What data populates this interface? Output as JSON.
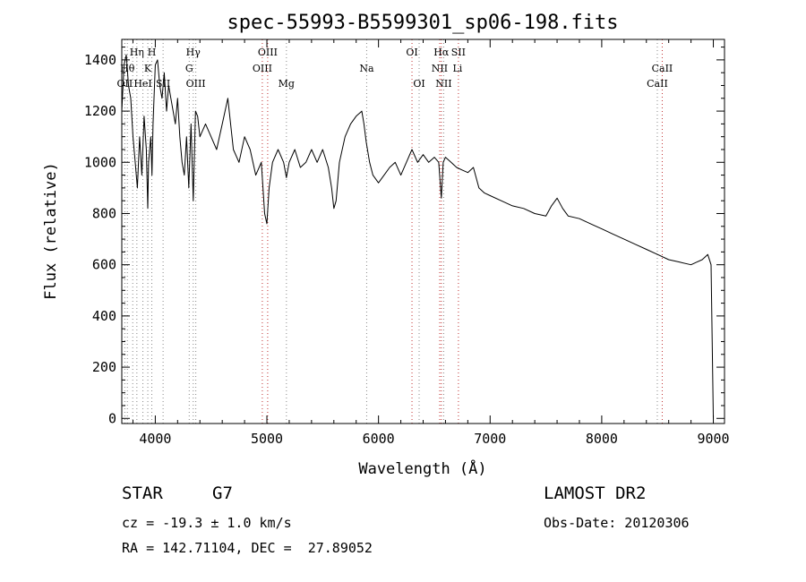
{
  "chart_data": {
    "type": "line",
    "title": "spec-55993-B5599301_sp06-198.fits",
    "xlabel": "Wavelength (Å)",
    "ylabel": "Flux (relative)",
    "xlim": [
      3700,
      9100
    ],
    "ylim": [
      -20,
      1480
    ],
    "xticks": [
      4000,
      5000,
      6000,
      7000,
      8000,
      9000
    ],
    "yticks": [
      0,
      200,
      400,
      600,
      800,
      1000,
      1200,
      1400
    ],
    "grid": false,
    "line_color": "#000000",
    "marker_color": "#c03030",
    "series": [
      {
        "x": [
          3700,
          3720,
          3740,
          3760,
          3780,
          3800,
          3820,
          3840,
          3860,
          3880,
          3900,
          3920,
          3933,
          3940,
          3960,
          3970,
          3980,
          4000,
          4020,
          4040,
          4060,
          4080,
          4101,
          4120,
          4140,
          4160,
          4180,
          4200,
          4220,
          4240,
          4260,
          4280,
          4300,
          4320,
          4340,
          4360,
          4380,
          4400,
          4450,
          4500,
          4550,
          4600,
          4650,
          4700,
          4750,
          4800,
          4850,
          4900,
          4950,
          4980,
          5000,
          5020,
          5050,
          5100,
          5150,
          5175,
          5200,
          5250,
          5300,
          5350,
          5400,
          5450,
          5500,
          5550,
          5580,
          5600,
          5620,
          5650,
          5700,
          5750,
          5800,
          5850,
          5870,
          5890,
          5920,
          5950,
          6000,
          6050,
          6100,
          6150,
          6200,
          6250,
          6300,
          6350,
          6400,
          6450,
          6500,
          6540,
          6563,
          6580,
          6600,
          6650,
          6700,
          6750,
          6800,
          6850,
          6900,
          6950,
          7000,
          7100,
          7200,
          7300,
          7400,
          7500,
          7550,
          7600,
          7650,
          7700,
          7800,
          7900,
          8000,
          8100,
          8200,
          8300,
          8400,
          8500,
          8600,
          8700,
          8800,
          8850,
          8900,
          8950,
          8980,
          9000
        ],
        "y": [
          1200,
          1380,
          1420,
          1300,
          1250,
          1100,
          1000,
          900,
          1100,
          950,
          1180,
          1050,
          820,
          1000,
          1100,
          950,
          1150,
          1380,
          1400,
          1300,
          1250,
          1350,
          1200,
          1300,
          1250,
          1200,
          1150,
          1250,
          1100,
          1000,
          950,
          1100,
          900,
          1150,
          850,
          1200,
          1180,
          1100,
          1150,
          1100,
          1050,
          1150,
          1250,
          1050,
          1000,
          1100,
          1050,
          950,
          1000,
          800,
          760,
          900,
          1000,
          1050,
          1000,
          940,
          1000,
          1050,
          980,
          1000,
          1050,
          1000,
          1050,
          980,
          900,
          820,
          850,
          1000,
          1100,
          1150,
          1180,
          1200,
          1150,
          1080,
          1000,
          950,
          920,
          950,
          980,
          1000,
          950,
          1000,
          1050,
          1000,
          1030,
          1000,
          1020,
          1000,
          860,
          1000,
          1020,
          1000,
          980,
          970,
          960,
          980,
          900,
          880,
          870,
          850,
          830,
          820,
          800,
          790,
          830,
          860,
          820,
          790,
          780,
          760,
          740,
          720,
          700,
          680,
          660,
          640,
          620,
          610,
          600,
          610,
          620,
          640,
          600,
          0
        ]
      }
    ],
    "line_labels": [
      {
        "text": "OII",
        "x": 3727,
        "row": 3
      },
      {
        "text": "Hθ",
        "x": 3750,
        "row": 2
      },
      {
        "text": "Hη",
        "x": 3835,
        "row": 1
      },
      {
        "text": "HeI",
        "x": 3889,
        "row": 3
      },
      {
        "text": "K",
        "x": 3933,
        "row": 2
      },
      {
        "text": "H",
        "x": 3969,
        "row": 1
      },
      {
        "text": "SII",
        "x": 4070,
        "row": 3
      },
      {
        "text": "Hγ",
        "x": 4340,
        "row": 1
      },
      {
        "text": "G",
        "x": 4304,
        "row": 2
      },
      {
        "text": "OIII",
        "x": 4363,
        "row": 3
      },
      {
        "text": "OIII",
        "x": 5007,
        "row": 1
      },
      {
        "text": "OIII",
        "x": 4959,
        "row": 2
      },
      {
        "text": "Mg",
        "x": 5175,
        "row": 3
      },
      {
        "text": "Na",
        "x": 5894,
        "row": 2
      },
      {
        "text": "OI",
        "x": 6300,
        "row": 1
      },
      {
        "text": "OI",
        "x": 6364,
        "row": 3
      },
      {
        "text": "Hα",
        "x": 6563,
        "row": 1
      },
      {
        "text": "NII",
        "x": 6548,
        "row": 2
      },
      {
        "text": "NII",
        "x": 6584,
        "row": 3
      },
      {
        "text": "SII",
        "x": 6716,
        "row": 1
      },
      {
        "text": "Li",
        "x": 6708,
        "row": 2
      },
      {
        "text": "CaII",
        "x": 8542,
        "row": 2
      },
      {
        "text": "CaII",
        "x": 8498,
        "row": 3
      }
    ],
    "marker_lines": [
      {
        "x": 3727,
        "style": "dotted-gray"
      },
      {
        "x": 3750,
        "style": "dotted-gray"
      },
      {
        "x": 3798,
        "style": "dotted-gray"
      },
      {
        "x": 3835,
        "style": "dotted-gray"
      },
      {
        "x": 3889,
        "style": "dotted-gray"
      },
      {
        "x": 3933,
        "style": "dotted-gray"
      },
      {
        "x": 3969,
        "style": "dotted-gray"
      },
      {
        "x": 4070,
        "style": "dotted-gray"
      },
      {
        "x": 4304,
        "style": "dotted-gray"
      },
      {
        "x": 4340,
        "style": "dotted-gray"
      },
      {
        "x": 4363,
        "style": "dotted-gray"
      },
      {
        "x": 4959,
        "style": "dotted-red"
      },
      {
        "x": 5007,
        "style": "dotted-red"
      },
      {
        "x": 5175,
        "style": "dotted-gray"
      },
      {
        "x": 5894,
        "style": "dotted-gray"
      },
      {
        "x": 6300,
        "style": "dotted-red"
      },
      {
        "x": 6364,
        "style": "dotted-gray"
      },
      {
        "x": 6548,
        "style": "dotted-red"
      },
      {
        "x": 6563,
        "style": "dotted-red"
      },
      {
        "x": 6584,
        "style": "dotted-gray"
      },
      {
        "x": 6716,
        "style": "dotted-red"
      },
      {
        "x": 8498,
        "style": "dotted-gray"
      },
      {
        "x": 8542,
        "style": "dotted-red"
      }
    ]
  },
  "info": {
    "object_class": "STAR",
    "subclass": "G7",
    "survey": "LAMOST DR2",
    "redshift": "cz = -19.3 ± 1.0 km/s",
    "obs_date": "Obs-Date: 20120306",
    "coords": "RA = 142.71104, DEC =  27.89052"
  }
}
